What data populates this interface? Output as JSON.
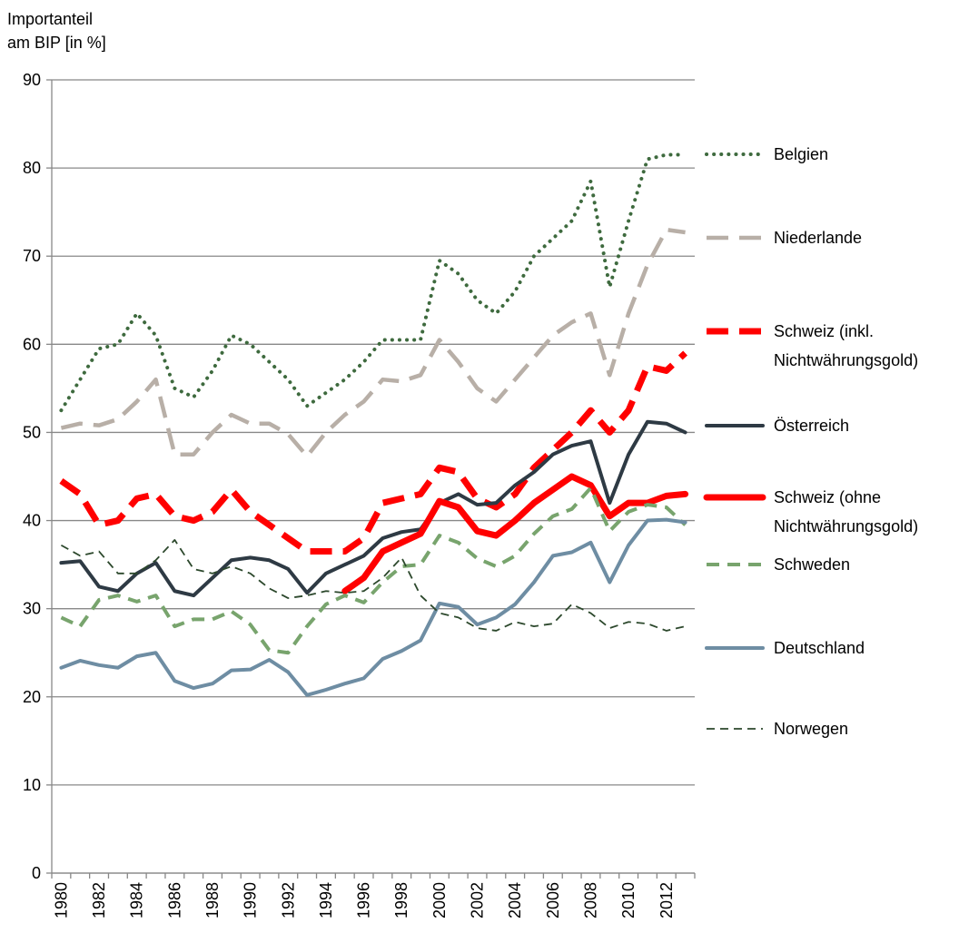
{
  "chart_data": {
    "type": "line",
    "y_axis_title": "Importanteil\nam BIP [in %]",
    "categories": [
      "1980",
      null,
      "1982",
      null,
      "1984",
      null,
      "1986",
      null,
      "1988",
      null,
      "1990",
      null,
      "1992",
      null,
      "1994",
      null,
      "1996",
      null,
      "1998",
      null,
      "2000",
      null,
      "2002",
      null,
      "2004",
      null,
      "2006",
      null,
      "2008",
      null,
      "2010",
      null,
      "2012",
      null
    ],
    "ylim": [
      0,
      90
    ],
    "yticks": [
      0,
      10,
      20,
      30,
      40,
      50,
      60,
      70,
      80,
      90
    ],
    "grid": true,
    "series": [
      {
        "name": "Belgien",
        "color": "#3e6a3e",
        "style": "dotted",
        "values": [
          52.5,
          56,
          59.5,
          60,
          63.5,
          61,
          55,
          54,
          57,
          61,
          60,
          58,
          56,
          53,
          54.5,
          56,
          58,
          60.5,
          60.5,
          60.5,
          69.5,
          68,
          65,
          63.5,
          66,
          70,
          72,
          74,
          78.5,
          66.5,
          74,
          81,
          81.5,
          81.5
        ]
      },
      {
        "name": "Niederlande",
        "color": "#b8afa7",
        "style": "longdash",
        "values": [
          50.5,
          51,
          50.8,
          51.5,
          53.5,
          56,
          47.5,
          47.5,
          50,
          52,
          51,
          51,
          49.8,
          47.3,
          50,
          52,
          53.5,
          56,
          55.8,
          56.5,
          60.5,
          58,
          55,
          53.5,
          56,
          58.5,
          61,
          62.5,
          63.5,
          56.5,
          63.5,
          69,
          73,
          72.7
        ]
      },
      {
        "name": "Schweiz (inkl. Nichtwährungsgold)",
        "color": "#ff0000",
        "style": "thickdash",
        "values": [
          44.5,
          43,
          39.5,
          40,
          42.5,
          43,
          40.5,
          40,
          41,
          43.5,
          41,
          39.5,
          38,
          36.5,
          36.5,
          36.5,
          38,
          42,
          42.5,
          43,
          46,
          45.5,
          42.5,
          41.5,
          43,
          46,
          48,
          50,
          52.5,
          50,
          52.5,
          57.5,
          57,
          59
        ]
      },
      {
        "name": "Österreich",
        "color": "#2e3a44",
        "style": "solid",
        "values": [
          35.2,
          35.4,
          32.5,
          32,
          34,
          35.2,
          32,
          31.5,
          33.5,
          35.5,
          35.8,
          35.5,
          34.5,
          31.8,
          34,
          35,
          36,
          38,
          38.7,
          39,
          42,
          43,
          41.8,
          42,
          44,
          45.5,
          47.5,
          48.5,
          49,
          42,
          47.5,
          51.2,
          51,
          50
        ]
      },
      {
        "name": "Schweiz (ohne Nichtwährungsgold)",
        "color": "#ff0000",
        "style": "thick",
        "values": [
          null,
          null,
          null,
          null,
          null,
          null,
          null,
          null,
          null,
          null,
          null,
          null,
          null,
          null,
          null,
          32,
          33.5,
          36.5,
          37.5,
          38.5,
          42.2,
          41.5,
          38.8,
          38.3,
          40,
          42,
          43.5,
          45,
          44,
          40.5,
          42,
          42,
          42.8,
          43
        ]
      },
      {
        "name": "Schweden",
        "color": "#78a46d",
        "style": "dashed",
        "values": [
          29,
          28,
          31,
          31.5,
          30.8,
          31.5,
          28,
          28.8,
          28.8,
          29.7,
          28.2,
          25.3,
          25,
          28,
          30.5,
          31.5,
          30.7,
          33,
          34.8,
          35,
          38.3,
          37.5,
          35.7,
          34.8,
          36,
          38.5,
          40.5,
          41.3,
          43.7,
          38.8,
          41,
          41.8,
          41.5,
          39.5
        ]
      },
      {
        "name": "Deutschland",
        "color": "#6e8da3",
        "style": "solid",
        "values": [
          23.3,
          24.1,
          23.6,
          23.3,
          24.6,
          25,
          21.8,
          21,
          21.5,
          23,
          23.1,
          24.2,
          22.8,
          20.2,
          20.8,
          21.5,
          22.1,
          24.3,
          25.2,
          26.4,
          30.6,
          30.2,
          28.2,
          29,
          30.5,
          33,
          36,
          36.4,
          37.5,
          33,
          37.2,
          40,
          40.1,
          39.8
        ]
      },
      {
        "name": "Norwegen",
        "color": "#2c482c",
        "style": "thin",
        "values": [
          37.2,
          36,
          36.5,
          34,
          34,
          35.5,
          37.8,
          34.5,
          34,
          34.8,
          34,
          32.3,
          31.2,
          31.5,
          32,
          31.8,
          32,
          33.5,
          35.8,
          31.5,
          29.5,
          29,
          27.8,
          27.5,
          28.5,
          28,
          28.3,
          30.5,
          29.5,
          27.8,
          28.5,
          28.3,
          27.5,
          28
        ]
      }
    ]
  }
}
